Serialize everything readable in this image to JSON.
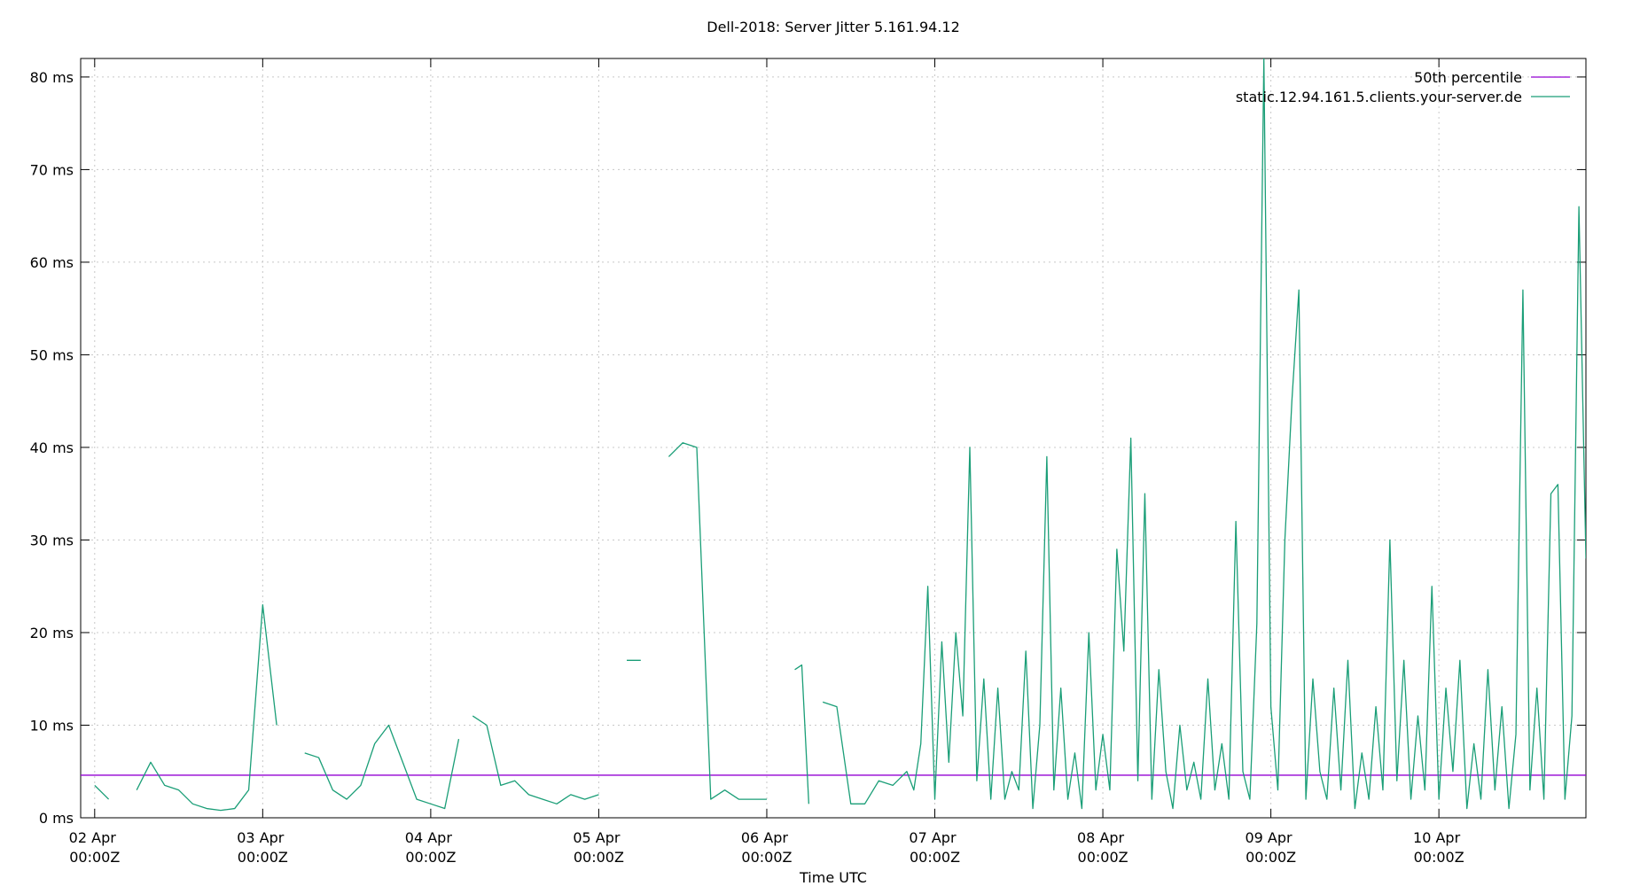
{
  "chart_data": {
    "type": "line",
    "title": "Dell-2018: Server Jitter 5.161.94.12",
    "x_label": "Time UTC",
    "xlim": [
      "01 Apr 22:00Z",
      "10 Apr 21:00Z"
    ],
    "xticks": [
      "02 Apr 00:00Z",
      "03 Apr 00:00Z",
      "04 Apr 00:00Z",
      "05 Apr 00:00Z",
      "06 Apr 00:00Z",
      "07 Apr 00:00Z",
      "08 Apr 00:00Z",
      "09 Apr 00:00Z",
      "10 Apr 00:00Z"
    ],
    "ylim": [
      0,
      82
    ],
    "yticks": [
      {
        "value": 0,
        "label": "0 ms"
      },
      {
        "value": 10,
        "label": "10 ms"
      },
      {
        "value": 20,
        "label": "20 ms"
      },
      {
        "value": 30,
        "label": "30 ms"
      },
      {
        "value": 40,
        "label": "40 ms"
      },
      {
        "value": 50,
        "label": "50 ms"
      },
      {
        "value": 60,
        "label": "60 ms"
      },
      {
        "value": 70,
        "label": "70 ms"
      },
      {
        "value": 80,
        "label": "80 ms"
      }
    ],
    "grid": true,
    "legend": "top-right",
    "series": [
      {
        "name": "50th percentile",
        "color": "#9400d3",
        "x": [
          "01 Apr 22:00Z",
          "10 Apr 21:00Z"
        ],
        "values": [
          4.6,
          4.6
        ]
      },
      {
        "name": "static.12.94.161.5.clients.your-server.de",
        "color": "#1a9e77",
        "x": [
          "02 Apr 00:00Z",
          "02 Apr 02:00Z",
          "02 Apr 04:00Z",
          "02 Apr 06:00Z",
          "02 Apr 08:00Z",
          "02 Apr 10:00Z",
          "02 Apr 12:00Z",
          "02 Apr 14:00Z",
          "02 Apr 16:00Z",
          "02 Apr 18:00Z",
          "02 Apr 20:00Z",
          "02 Apr 22:00Z",
          "03 Apr 00:00Z",
          "03 Apr 02:00Z",
          "03 Apr 04:00Z",
          "03 Apr 06:00Z",
          "03 Apr 08:00Z",
          "03 Apr 10:00Z",
          "03 Apr 12:00Z",
          "03 Apr 14:00Z",
          "03 Apr 16:00Z",
          "03 Apr 18:00Z",
          "03 Apr 20:00Z",
          "03 Apr 22:00Z",
          "04 Apr 00:00Z",
          "04 Apr 02:00Z",
          "04 Apr 04:00Z",
          "04 Apr 05:00Z",
          "04 Apr 06:00Z",
          "04 Apr 08:00Z",
          "04 Apr 10:00Z",
          "04 Apr 12:00Z",
          "04 Apr 14:00Z",
          "04 Apr 16:00Z",
          "04 Apr 18:00Z",
          "04 Apr 20:00Z",
          "04 Apr 22:00Z",
          "05 Apr 00:00Z",
          "05 Apr 02:00Z",
          "05 Apr 04:00Z",
          "05 Apr 06:00Z",
          "05 Apr 08:00Z",
          "05 Apr 10:00Z",
          "05 Apr 12:00Z",
          "05 Apr 14:00Z",
          "05 Apr 16:00Z",
          "05 Apr 18:00Z",
          "05 Apr 20:00Z",
          "05 Apr 22:00Z",
          "06 Apr 00:00Z",
          "06 Apr 02:00Z",
          "06 Apr 04:00Z",
          "06 Apr 05:00Z",
          "06 Apr 06:00Z",
          "06 Apr 07:00Z",
          "06 Apr 08:00Z",
          "06 Apr 10:00Z",
          "06 Apr 12:00Z",
          "06 Apr 14:00Z",
          "06 Apr 16:00Z",
          "06 Apr 18:00Z",
          "06 Apr 20:00Z",
          "06 Apr 21:00Z",
          "06 Apr 22:00Z",
          "06 Apr 23:00Z",
          "07 Apr 00:00Z",
          "07 Apr 01:00Z",
          "07 Apr 02:00Z",
          "07 Apr 03:00Z",
          "07 Apr 04:00Z",
          "07 Apr 05:00Z",
          "07 Apr 06:00Z",
          "07 Apr 07:00Z",
          "07 Apr 08:00Z",
          "07 Apr 09:00Z",
          "07 Apr 10:00Z",
          "07 Apr 11:00Z",
          "07 Apr 12:00Z",
          "07 Apr 13:00Z",
          "07 Apr 14:00Z",
          "07 Apr 15:00Z",
          "07 Apr 16:00Z",
          "07 Apr 17:00Z",
          "07 Apr 18:00Z",
          "07 Apr 19:00Z",
          "07 Apr 20:00Z",
          "07 Apr 21:00Z",
          "07 Apr 22:00Z",
          "07 Apr 23:00Z",
          "08 Apr 00:00Z",
          "08 Apr 01:00Z",
          "08 Apr 02:00Z",
          "08 Apr 03:00Z",
          "08 Apr 04:00Z",
          "08 Apr 05:00Z",
          "08 Apr 06:00Z",
          "08 Apr 07:00Z",
          "08 Apr 08:00Z",
          "08 Apr 09:00Z",
          "08 Apr 10:00Z",
          "08 Apr 11:00Z",
          "08 Apr 12:00Z",
          "08 Apr 13:00Z",
          "08 Apr 14:00Z",
          "08 Apr 15:00Z",
          "08 Apr 16:00Z",
          "08 Apr 17:00Z",
          "08 Apr 18:00Z",
          "08 Apr 19:00Z",
          "08 Apr 20:00Z",
          "08 Apr 21:00Z",
          "08 Apr 22:00Z",
          "08 Apr 23:00Z",
          "09 Apr 00:00Z",
          "09 Apr 01:00Z",
          "09 Apr 02:00Z",
          "09 Apr 03:00Z",
          "09 Apr 04:00Z",
          "09 Apr 05:00Z",
          "09 Apr 06:00Z",
          "09 Apr 07:00Z",
          "09 Apr 08:00Z",
          "09 Apr 09:00Z",
          "09 Apr 10:00Z",
          "09 Apr 11:00Z",
          "09 Apr 12:00Z",
          "09 Apr 13:00Z",
          "09 Apr 14:00Z",
          "09 Apr 15:00Z",
          "09 Apr 16:00Z",
          "09 Apr 17:00Z",
          "09 Apr 18:00Z",
          "09 Apr 19:00Z",
          "09 Apr 20:00Z",
          "09 Apr 21:00Z",
          "09 Apr 22:00Z",
          "09 Apr 23:00Z",
          "10 Apr 00:00Z",
          "10 Apr 01:00Z",
          "10 Apr 02:00Z",
          "10 Apr 03:00Z",
          "10 Apr 04:00Z",
          "10 Apr 05:00Z",
          "10 Apr 06:00Z",
          "10 Apr 07:00Z",
          "10 Apr 08:00Z",
          "10 Apr 09:00Z",
          "10 Apr 10:00Z",
          "10 Apr 11:00Z",
          "10 Apr 12:00Z",
          "10 Apr 13:00Z",
          "10 Apr 14:00Z",
          "10 Apr 15:00Z",
          "10 Apr 16:00Z",
          "10 Apr 17:00Z",
          "10 Apr 18:00Z",
          "10 Apr 19:00Z",
          "10 Apr 20:00Z",
          "10 Apr 21:00Z"
        ],
        "values": [
          3.5,
          2,
          null,
          3,
          6,
          3.5,
          3,
          1.5,
          1,
          0.8,
          1,
          3,
          23,
          10,
          null,
          7,
          6.5,
          3,
          2,
          3.5,
          8,
          10,
          6,
          2,
          1.5,
          1,
          8.5,
          null,
          11,
          10,
          3.5,
          4,
          2.5,
          2,
          1.5,
          2.5,
          2,
          2.5,
          null,
          17,
          17,
          null,
          39,
          40.5,
          40,
          2,
          3,
          2,
          2,
          2,
          null,
          16,
          16.5,
          1.5,
          null,
          12.5,
          12,
          1.5,
          1.5,
          4,
          3.5,
          5,
          3,
          8,
          25,
          2,
          19,
          6,
          20,
          11,
          40,
          4,
          15,
          2,
          14,
          2,
          5,
          3,
          18,
          1,
          10,
          39,
          3,
          14,
          2,
          7,
          1,
          20,
          3,
          9,
          3,
          29,
          18,
          41,
          4,
          35,
          2,
          16,
          5,
          1,
          10,
          3,
          6,
          2,
          15,
          3,
          8,
          2,
          32,
          5,
          2,
          21,
          82,
          12,
          3,
          30,
          45,
          57,
          2,
          15,
          5,
          2,
          14,
          3,
          17,
          1,
          7,
          2,
          12,
          3,
          30,
          4,
          17,
          2,
          11,
          3,
          25,
          2,
          14,
          5,
          17,
          1,
          8,
          2,
          16,
          3,
          12,
          1,
          9,
          57,
          3,
          14,
          2,
          35,
          36,
          2,
          11,
          66,
          28
        ]
      }
    ]
  }
}
